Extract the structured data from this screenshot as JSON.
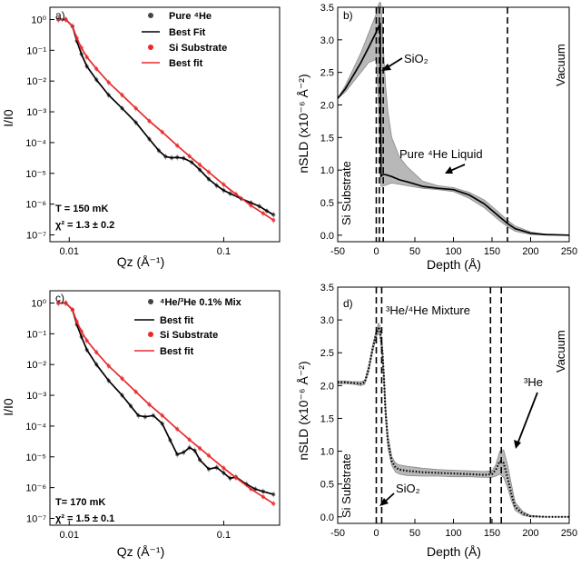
{
  "chart_data": [
    {
      "panel_label": "a)",
      "type": "scatter",
      "xscale": "log",
      "yscale": "log",
      "xlim": [
        0.0075,
        0.23
      ],
      "ylim": [
        6e-08,
        2.5
      ],
      "xticks": [
        {
          "v": 0.01,
          "label": "0.01"
        },
        {
          "v": 0.1,
          "label": "0.1"
        }
      ],
      "yticks": [
        {
          "v": 1,
          "label": "10⁰"
        },
        {
          "v": 0.1,
          "label": "10⁻¹"
        },
        {
          "v": 0.01,
          "label": "10⁻²"
        },
        {
          "v": 0.001,
          "label": "10⁻³"
        },
        {
          "v": 0.0001,
          "label": "10⁻⁴"
        },
        {
          "v": 1e-05,
          "label": "10⁻⁵"
        },
        {
          "v": 1e-06,
          "label": "10⁻⁶"
        },
        {
          "v": 1e-07,
          "label": "10⁻⁷"
        }
      ],
      "xlabel": "Qz (Å⁻¹)",
      "ylabel": "I/I0",
      "legend_position": "top-right",
      "legend": [
        "Pure ⁴He",
        "Best Fit",
        "Si Substrate",
        "Best fit"
      ],
      "annotations": [
        "T = 150 mK",
        "χ² = 1.3 ± 0.2"
      ],
      "series": [
        {
          "name": "Pure ⁴He",
          "kind": "points",
          "color": "#444444",
          "x": [
            0.0085,
            0.0095,
            0.0105,
            0.0112,
            0.012,
            0.013,
            0.015,
            0.018,
            0.022,
            0.027,
            0.033,
            0.038,
            0.042,
            0.046,
            0.05,
            0.055,
            0.062,
            0.07,
            0.08,
            0.09,
            0.1,
            0.11,
            0.13,
            0.15,
            0.17,
            0.19,
            0.21
          ],
          "y": [
            1.0,
            1.0,
            0.6,
            0.2,
            0.075,
            0.03,
            0.011,
            0.0035,
            0.0013,
            0.00045,
            0.00013,
            5.5e-05,
            3.5e-05,
            3.2e-05,
            3.3e-05,
            3.1e-05,
            2.3e-05,
            1.3e-05,
            6.5e-06,
            4e-06,
            2.8e-06,
            2.2e-06,
            1.5e-06,
            1.1e-06,
            8.5e-07,
            6e-07,
            4.5e-07
          ]
        },
        {
          "name": "Best Fit",
          "kind": "line",
          "color": "#000000",
          "x": [
            0.0085,
            0.0095,
            0.0105,
            0.0112,
            0.012,
            0.013,
            0.015,
            0.018,
            0.022,
            0.027,
            0.033,
            0.038,
            0.042,
            0.046,
            0.05,
            0.055,
            0.062,
            0.07,
            0.08,
            0.09,
            0.1,
            0.11,
            0.13,
            0.15,
            0.17,
            0.19,
            0.21
          ],
          "y": [
            1.0,
            1.0,
            0.6,
            0.2,
            0.075,
            0.03,
            0.011,
            0.0035,
            0.0013,
            0.00045,
            0.00013,
            5.5e-05,
            3.5e-05,
            3.2e-05,
            3.3e-05,
            3.1e-05,
            2.3e-05,
            1.3e-05,
            6.5e-06,
            4e-06,
            2.8e-06,
            2.2e-06,
            1.5e-06,
            1.1e-06,
            8.5e-07,
            6e-07,
            4.5e-07
          ]
        },
        {
          "name": "Si Substrate",
          "kind": "points",
          "color": "#e8292b",
          "x": [
            0.0085,
            0.0095,
            0.0105,
            0.0112,
            0.012,
            0.013,
            0.015,
            0.018,
            0.022,
            0.027,
            0.033,
            0.04,
            0.05,
            0.06,
            0.07,
            0.08,
            0.1,
            0.12,
            0.15,
            0.18,
            0.21
          ],
          "y": [
            1.0,
            1.0,
            0.6,
            0.25,
            0.12,
            0.06,
            0.025,
            0.009,
            0.0035,
            0.0013,
            0.0005,
            0.00022,
            8e-05,
            3.6e-05,
            1.9e-05,
            1.1e-05,
            4.3e-06,
            2.1e-06,
            9e-07,
            5e-07,
            3e-07
          ]
        },
        {
          "name": "Best fit",
          "kind": "line",
          "color": "#e8292b",
          "x": [
            0.0085,
            0.0095,
            0.0105,
            0.0112,
            0.012,
            0.013,
            0.015,
            0.018,
            0.022,
            0.027,
            0.033,
            0.04,
            0.05,
            0.06,
            0.07,
            0.08,
            0.1,
            0.12,
            0.15,
            0.18,
            0.21
          ],
          "y": [
            1.0,
            1.0,
            0.6,
            0.25,
            0.12,
            0.06,
            0.025,
            0.009,
            0.0035,
            0.0013,
            0.0005,
            0.00022,
            8e-05,
            3.6e-05,
            1.9e-05,
            1.1e-05,
            4.3e-06,
            2.1e-06,
            9e-07,
            5e-07,
            3e-07
          ]
        }
      ]
    },
    {
      "panel_label": "b)",
      "type": "line",
      "xscale": "linear",
      "yscale": "linear",
      "xlim": [
        -50,
        250
      ],
      "ylim": [
        -0.1,
        3.5
      ],
      "xticks": [
        {
          "v": -50,
          "label": "-50"
        },
        {
          "v": 0,
          "label": "0"
        },
        {
          "v": 50,
          "label": "50"
        },
        {
          "v": 100,
          "label": "100"
        },
        {
          "v": 150,
          "label": "150"
        },
        {
          "v": 200,
          "label": "200"
        },
        {
          "v": 250,
          "label": "250"
        }
      ],
      "yticks": [
        {
          "v": 0,
          "label": "0.0"
        },
        {
          "v": 0.5,
          "label": "0.5"
        },
        {
          "v": 1,
          "label": "1.0"
        },
        {
          "v": 1.5,
          "label": "1.5"
        },
        {
          "v": 2,
          "label": "2.0"
        },
        {
          "v": 2.5,
          "label": "2.5"
        },
        {
          "v": 3,
          "label": "3.0"
        },
        {
          "v": 3.5,
          "label": "3.5"
        }
      ],
      "xlabel": "Depth (Å)",
      "ylabel": "nSLD (x10⁻⁶ Å⁻²)",
      "vlines": [
        0,
        4,
        9,
        170
      ],
      "region_labels": [
        "Si Substrate",
        "Vacuum"
      ],
      "annotations": [
        "SiO₂",
        "Pure ⁴He Liquid"
      ],
      "series": [
        {
          "name": "",
          "kind": "line",
          "color": "#000000",
          "x": [
            -50,
            -40,
            -30,
            -20,
            -10,
            0,
            3,
            5,
            6,
            7,
            9,
            12,
            20,
            30,
            40,
            60,
            80,
            100,
            120,
            140,
            160,
            170,
            180,
            200,
            220,
            250
          ],
          "y": [
            2.1,
            2.25,
            2.45,
            2.65,
            2.88,
            3.12,
            3.2,
            3.25,
            0.9,
            0.92,
            0.93,
            0.93,
            0.9,
            0.85,
            0.82,
            0.75,
            0.72,
            0.7,
            0.62,
            0.48,
            0.28,
            0.18,
            0.1,
            0.03,
            0.01,
            0.0
          ]
        }
      ],
      "band": {
        "x": [
          -50,
          -40,
          -30,
          -20,
          -10,
          0,
          3,
          5,
          6,
          8,
          10,
          12,
          15,
          20,
          30,
          40,
          60,
          80,
          100,
          120,
          140,
          160,
          170,
          180,
          200,
          220,
          250
        ],
        "lower": [
          2.1,
          2.2,
          2.35,
          2.5,
          2.65,
          2.7,
          2.0,
          1.2,
          0.75,
          0.75,
          0.76,
          0.77,
          0.78,
          0.8,
          0.78,
          0.76,
          0.72,
          0.7,
          0.67,
          0.57,
          0.42,
          0.22,
          0.13,
          0.06,
          0.01,
          0.0,
          0.0
        ],
        "upper": [
          2.1,
          2.3,
          2.55,
          2.8,
          3.1,
          3.4,
          3.55,
          3.58,
          3.55,
          3.2,
          2.7,
          2.3,
          1.9,
          1.5,
          1.2,
          1.05,
          0.83,
          0.76,
          0.73,
          0.66,
          0.54,
          0.34,
          0.23,
          0.14,
          0.05,
          0.01,
          0.0
        ]
      }
    },
    {
      "panel_label": "c)",
      "type": "scatter",
      "xscale": "log",
      "yscale": "log",
      "xlim": [
        0.0075,
        0.23
      ],
      "ylim": [
        6e-08,
        2.5
      ],
      "xticks": [
        {
          "v": 0.01,
          "label": "0.01"
        },
        {
          "v": 0.1,
          "label": "0.1"
        }
      ],
      "yticks": [
        {
          "v": 1,
          "label": "10⁰"
        },
        {
          "v": 0.1,
          "label": "10⁻¹"
        },
        {
          "v": 0.01,
          "label": "10⁻²"
        },
        {
          "v": 0.001,
          "label": "10⁻³"
        },
        {
          "v": 0.0001,
          "label": "10⁻⁴"
        },
        {
          "v": 1e-05,
          "label": "10⁻⁵"
        },
        {
          "v": 1e-06,
          "label": "10⁻⁶"
        },
        {
          "v": 1e-07,
          "label": "10⁻⁷"
        }
      ],
      "xlabel": "Qz (Å⁻¹)",
      "ylabel": "I/I0",
      "legend_position": "top-right",
      "legend": [
        "⁴He/³He 0.1% Mix",
        "Best fit",
        "Si Substrate",
        "Best fit"
      ],
      "annotations": [
        "T= 170 mK",
        "χ² = 1.5 ± 0.1"
      ],
      "series": [
        {
          "name": "⁴He/³He 0.1% Mix",
          "kind": "points",
          "color": "#444444",
          "x": [
            0.0085,
            0.0095,
            0.0105,
            0.0112,
            0.012,
            0.013,
            0.015,
            0.018,
            0.022,
            0.025,
            0.028,
            0.031,
            0.035,
            0.04,
            0.045,
            0.05,
            0.055,
            0.06,
            0.065,
            0.07,
            0.08,
            0.09,
            0.1,
            0.11,
            0.12,
            0.14,
            0.16,
            0.18,
            0.21
          ],
          "y": [
            1.0,
            1.0,
            0.6,
            0.2,
            0.08,
            0.03,
            0.01,
            0.003,
            0.001,
            0.00045,
            0.00022,
            0.0002,
            0.00022,
            0.00012,
            3.5e-05,
            1.2e-05,
            1.4e-05,
            2e-05,
            1.6e-05,
            8e-06,
            4e-06,
            4.5e-06,
            3e-06,
            2e-06,
            2.2e-06,
            1.3e-06,
            9e-07,
            7.5e-07,
            6e-07
          ]
        },
        {
          "name": "Best fit",
          "kind": "line",
          "color": "#000000",
          "x": [
            0.0085,
            0.0095,
            0.0105,
            0.0112,
            0.012,
            0.013,
            0.015,
            0.018,
            0.022,
            0.025,
            0.028,
            0.031,
            0.035,
            0.04,
            0.045,
            0.05,
            0.055,
            0.06,
            0.065,
            0.07,
            0.08,
            0.09,
            0.1,
            0.11,
            0.12,
            0.14,
            0.16,
            0.18,
            0.21
          ],
          "y": [
            1.0,
            1.0,
            0.6,
            0.2,
            0.08,
            0.03,
            0.01,
            0.003,
            0.001,
            0.00045,
            0.00022,
            0.0002,
            0.00022,
            0.00012,
            3.5e-05,
            1.2e-05,
            1.4e-05,
            2e-05,
            1.6e-05,
            8e-06,
            4e-06,
            4.5e-06,
            3e-06,
            2e-06,
            2.2e-06,
            1.3e-06,
            9e-07,
            7.5e-07,
            6e-07
          ]
        },
        {
          "name": "Si Substrate",
          "kind": "points",
          "color": "#e8292b",
          "x": [
            0.0085,
            0.0095,
            0.0105,
            0.0112,
            0.012,
            0.013,
            0.015,
            0.018,
            0.022,
            0.027,
            0.033,
            0.04,
            0.05,
            0.06,
            0.07,
            0.08,
            0.1,
            0.12,
            0.15,
            0.18,
            0.21
          ],
          "y": [
            1.0,
            1.0,
            0.6,
            0.25,
            0.12,
            0.06,
            0.025,
            0.009,
            0.0035,
            0.0013,
            0.0005,
            0.00022,
            8e-05,
            3.6e-05,
            1.9e-05,
            1.1e-05,
            4.3e-06,
            2.1e-06,
            9e-07,
            5e-07,
            3e-07
          ]
        },
        {
          "name": "Best fit",
          "kind": "line",
          "color": "#e8292b",
          "x": [
            0.0085,
            0.0095,
            0.0105,
            0.0112,
            0.012,
            0.013,
            0.015,
            0.018,
            0.022,
            0.027,
            0.033,
            0.04,
            0.05,
            0.06,
            0.07,
            0.08,
            0.1,
            0.12,
            0.15,
            0.18,
            0.21
          ],
          "y": [
            1.0,
            1.0,
            0.6,
            0.25,
            0.12,
            0.06,
            0.025,
            0.009,
            0.0035,
            0.0013,
            0.0005,
            0.00022,
            8e-05,
            3.6e-05,
            1.9e-05,
            1.1e-05,
            4.3e-06,
            2.1e-06,
            9e-07,
            5e-07,
            3e-07
          ]
        }
      ]
    },
    {
      "panel_label": "d)",
      "type": "line",
      "xscale": "linear",
      "yscale": "linear",
      "xlim": [
        -50,
        250
      ],
      "ylim": [
        -0.1,
        3.5
      ],
      "xticks": [
        {
          "v": -50,
          "label": "-50"
        },
        {
          "v": 0,
          "label": "0"
        },
        {
          "v": 50,
          "label": "50"
        },
        {
          "v": 100,
          "label": "100"
        },
        {
          "v": 150,
          "label": "150"
        },
        {
          "v": 200,
          "label": "200"
        },
        {
          "v": 250,
          "label": "250"
        }
      ],
      "yticks": [
        {
          "v": 0,
          "label": "0.0"
        },
        {
          "v": 0.5,
          "label": "0.5"
        },
        {
          "v": 1,
          "label": "1.0"
        },
        {
          "v": 1.5,
          "label": "1.5"
        },
        {
          "v": 2,
          "label": "2.0"
        },
        {
          "v": 2.5,
          "label": "2.5"
        },
        {
          "v": 3,
          "label": "3.0"
        },
        {
          "v": 3.5,
          "label": "3.5"
        }
      ],
      "xlabel": "Depth (Å)",
      "ylabel": "nSLD (x10⁻⁶ Å⁻²)",
      "vlines": [
        0,
        7,
        148,
        162
      ],
      "region_labels": [
        "Si Substrate",
        "Vacuum"
      ],
      "annotations": [
        "³He/⁴He Mixture",
        "SiO₂",
        "³He"
      ],
      "series": [
        {
          "name": "",
          "kind": "dotted",
          "color": "#000000",
          "x": [
            -50,
            -40,
            -30,
            -20,
            -15,
            -10,
            -5,
            0,
            3,
            5,
            8,
            10,
            12,
            15,
            20,
            25,
            30,
            40,
            60,
            80,
            100,
            120,
            140,
            150,
            155,
            160,
            165,
            170,
            175,
            180,
            190,
            200,
            220,
            250
          ],
          "y": [
            2.05,
            2.05,
            2.04,
            2.03,
            2.05,
            2.25,
            2.55,
            2.8,
            2.87,
            2.82,
            2.5,
            2.1,
            1.6,
            1.15,
            0.85,
            0.75,
            0.72,
            0.7,
            0.68,
            0.67,
            0.66,
            0.65,
            0.64,
            0.65,
            0.72,
            0.85,
            0.82,
            0.6,
            0.35,
            0.15,
            0.05,
            0.01,
            0.0,
            0.0
          ]
        }
      ],
      "band": {
        "x": [
          -50,
          -40,
          -30,
          -20,
          -15,
          -10,
          -5,
          0,
          3,
          5,
          8,
          10,
          12,
          15,
          20,
          25,
          30,
          40,
          60,
          80,
          100,
          120,
          140,
          150,
          155,
          160,
          165,
          170,
          175,
          180,
          190,
          200,
          220,
          250
        ],
        "lower": [
          2.03,
          2.03,
          2.02,
          2.0,
          2.02,
          2.2,
          2.5,
          2.75,
          2.8,
          2.75,
          2.4,
          2.0,
          1.5,
          1.05,
          0.78,
          0.68,
          0.65,
          0.63,
          0.62,
          0.62,
          0.61,
          0.61,
          0.6,
          0.6,
          0.62,
          0.65,
          0.6,
          0.45,
          0.25,
          0.1,
          0.02,
          0.0,
          0.0,
          0.0
        ],
        "upper": [
          2.07,
          2.07,
          2.06,
          2.06,
          2.08,
          2.3,
          2.6,
          2.85,
          2.95,
          2.9,
          2.6,
          2.2,
          1.7,
          1.25,
          0.92,
          0.82,
          0.79,
          0.77,
          0.74,
          0.72,
          0.71,
          0.7,
          0.69,
          0.7,
          0.8,
          1.0,
          1.02,
          0.8,
          0.5,
          0.22,
          0.08,
          0.02,
          0.0,
          0.0
        ]
      }
    }
  ]
}
